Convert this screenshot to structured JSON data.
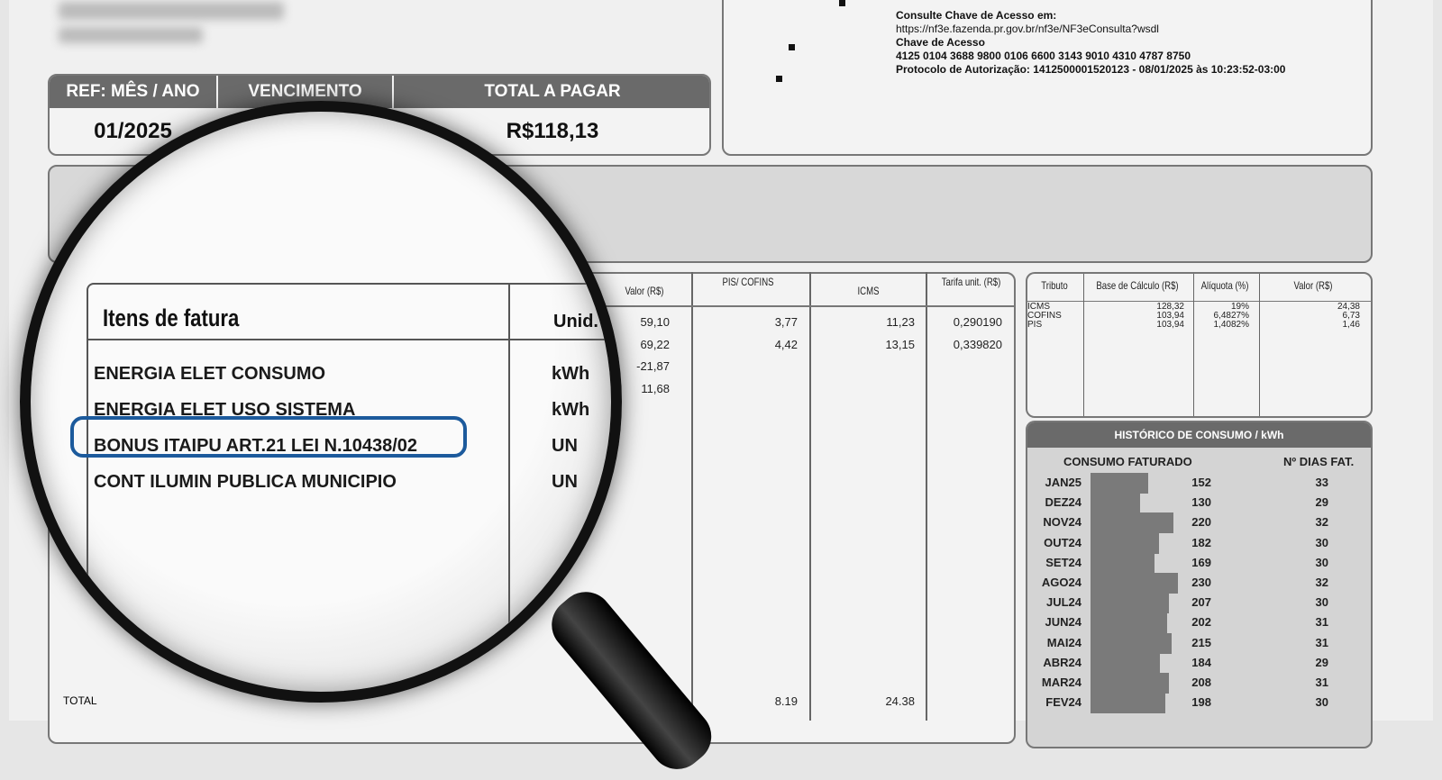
{
  "header": {
    "ref_label": "REF: MÊS / ANO",
    "venc_label": "VENCIMENTO",
    "total_label": "TOTAL A PAGAR",
    "ref_value": "01/2025",
    "total_value": "R$118,13"
  },
  "access": {
    "line1": "Consulte Chave de Acesso em:",
    "url": "https://nf3e.fazenda.pr.gov.br/nf3e/NF3eConsulta?wsdl",
    "line3": "Chave de Acesso",
    "key": "4125 0104 3688 9800 0106 6600 3143 9010 4310 4787 8750",
    "protocol": "Protocolo de Autorização: 1412500001520123 - 08/01/2025 às 10:23:52-03:00"
  },
  "items": {
    "title": "Itens de fatura",
    "unit_header": "Unid.",
    "headers": [
      "Valor (R$)",
      "PIS/ COFINS",
      "ICMS",
      "Tarifa unit. (R$)"
    ],
    "rows": [
      {
        "desc": "ENERGIA ELET CONSUMO",
        "unit": "kWh",
        "valor": "59,10",
        "pis": "3,77",
        "icms": "11,23",
        "tarifa": "0,290190"
      },
      {
        "desc": "ENERGIA ELET USO SISTEMA",
        "unit": "kWh",
        "valor": "69,22",
        "pis": "4,42",
        "icms": "13,15",
        "tarifa": "0,339820"
      },
      {
        "desc": "BONUS ITAIPU ART.21 LEI N.10438/02",
        "unit": "UN",
        "valor": "-21,87"
      },
      {
        "desc": "CONT ILUMIN PUBLICA MUNICIPIO",
        "unit": "UN",
        "valor": "11,68"
      }
    ],
    "total_label": "TOTAL",
    "total_pis": "8.19",
    "total_icms": "24.38",
    "highlight_color": "#1c5a9c"
  },
  "taxes": {
    "headers": [
      "Tributo",
      "Base de Cálculo (R$)",
      "Alíquota (%)",
      "Valor (R$)"
    ],
    "rows": [
      [
        "ICMS",
        "128,32",
        "19%",
        "24,38"
      ],
      [
        "COFINS",
        "103,94",
        "6,4827%",
        "6,73"
      ],
      [
        "PIS",
        "103,94",
        "1,4082%",
        "1,46"
      ]
    ]
  },
  "history": {
    "title": "HISTÓRICO DE CONSUMO / kWh",
    "col1": "CONSUMO FATURADO",
    "col2": "Nº DIAS FAT.",
    "rows": [
      [
        "JAN25",
        152,
        33
      ],
      [
        "DEZ24",
        130,
        29
      ],
      [
        "NOV24",
        220,
        32
      ],
      [
        "OUT24",
        182,
        30
      ],
      [
        "SET24",
        169,
        30
      ],
      [
        "AGO24",
        230,
        32
      ],
      [
        "JUL24",
        207,
        30
      ],
      [
        "JUN24",
        202,
        31
      ],
      [
        "MAI24",
        215,
        31
      ],
      [
        "ABR24",
        184,
        29
      ],
      [
        "MAR24",
        208,
        31
      ],
      [
        "FEV24",
        198,
        30
      ]
    ]
  }
}
